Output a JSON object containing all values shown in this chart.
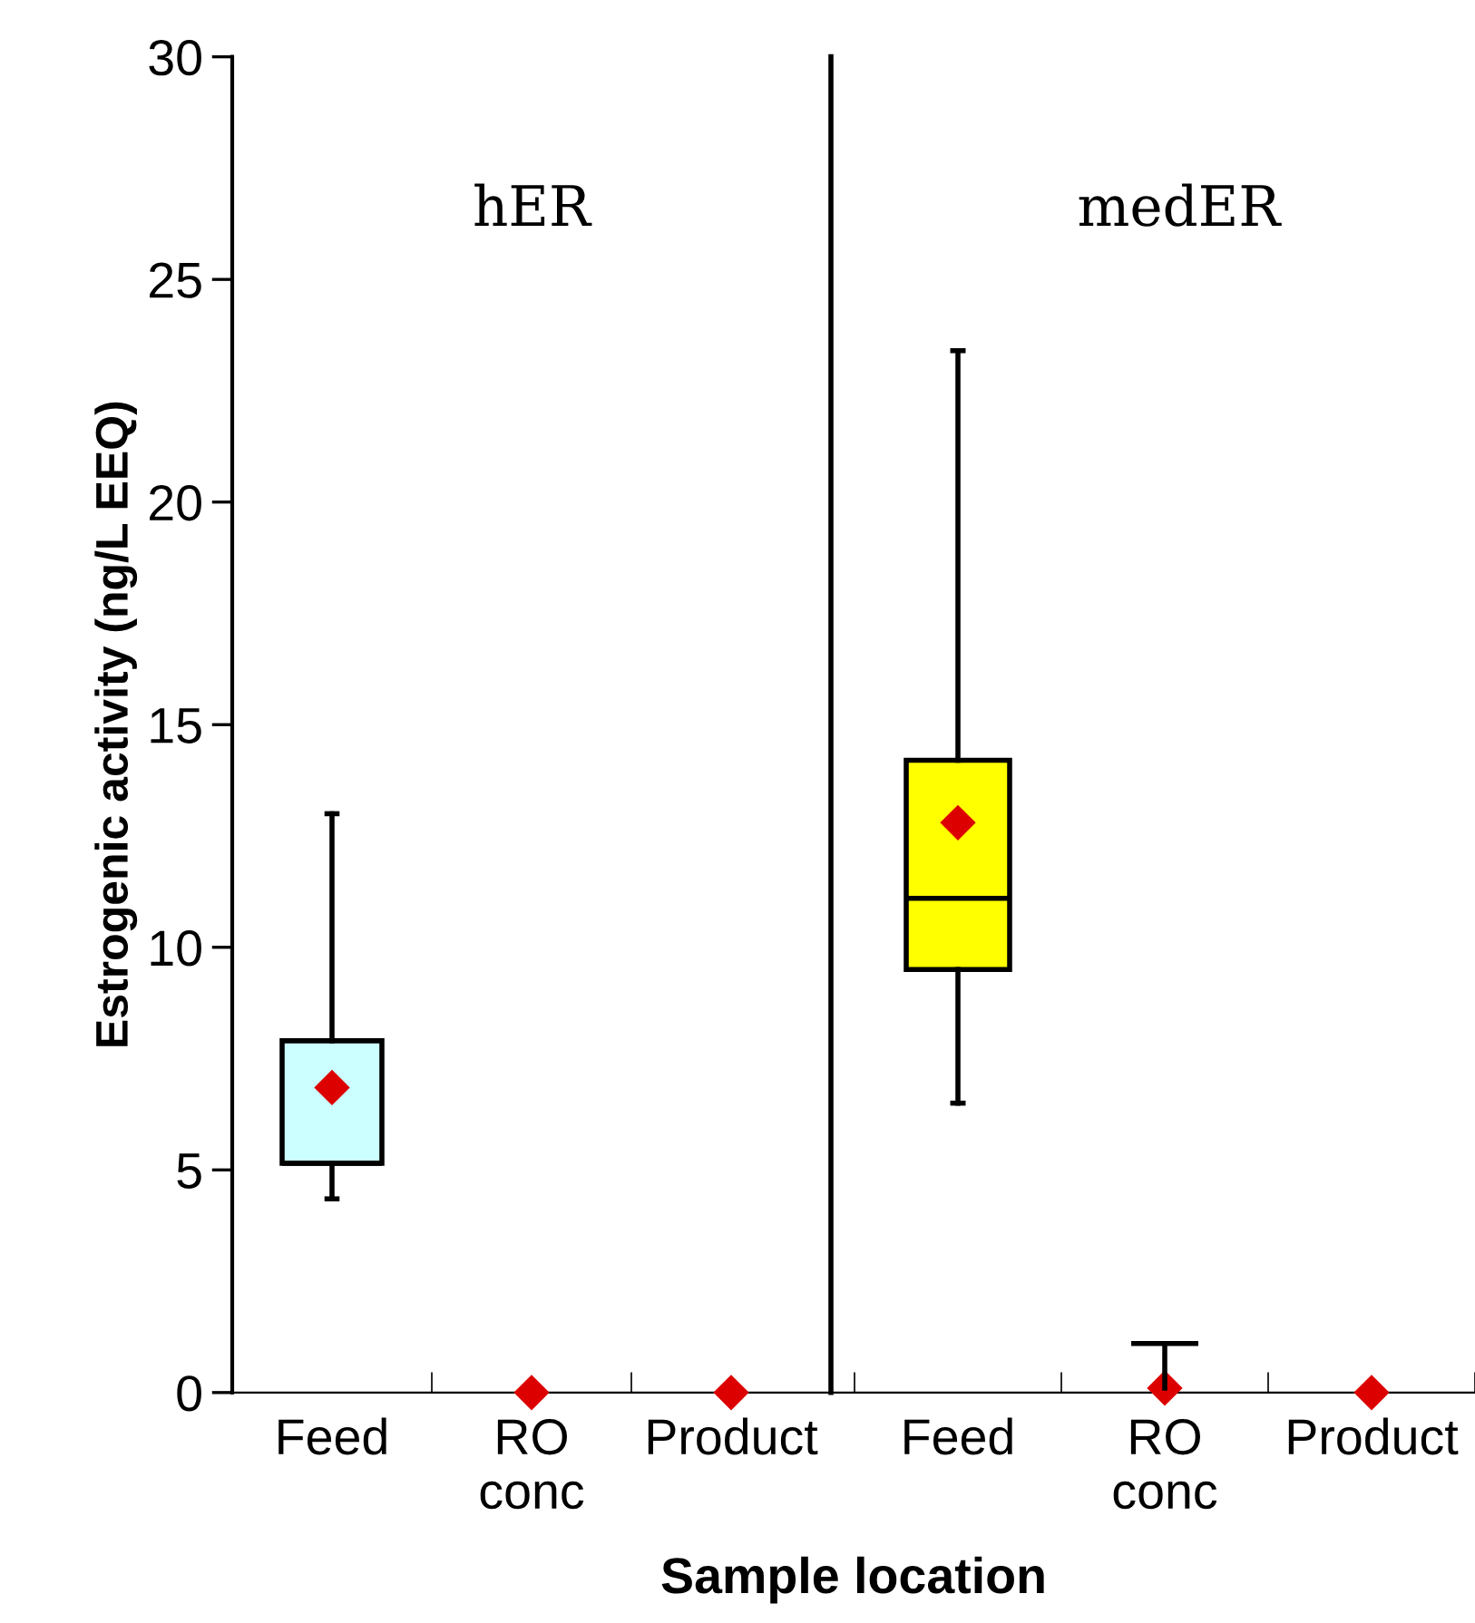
{
  "chart_data": [
    {
      "type": "box",
      "xlabel": "Sample location",
      "ylabel": "Estrogenic activity (ng/L EEQ)",
      "categories": [
        "Feed",
        "RO\nconc",
        "Product"
      ],
      "boxes": [
        {
          "low": 4.35,
          "q1": 5.15,
          "median": 5.15,
          "q3": 7.9,
          "high": 13
        },
        null,
        null
      ],
      "colors": [
        "#ccffff",
        null,
        null
      ],
      "series": [
        {
          "type": "scatter",
          "color": "#dd0000",
          "values": [
            6.85,
            0,
            0
          ]
        }
      ],
      "ylim": [
        0,
        30
      ],
      "yticks": [
        0,
        5,
        10,
        15,
        20,
        25,
        30
      ],
      "annotations": [
        "hER"
      ],
      "marker": "diamond"
    },
    {
      "type": "box",
      "categories": [
        "Feed",
        "RO\nconc",
        "Product"
      ],
      "boxes": [
        {
          "low": 6.5,
          "q1": 9.5,
          "median": 11.1,
          "q3": 14.2,
          "high": 23.4
        },
        null,
        null
      ],
      "colors": [
        "#ffff00",
        null,
        null
      ],
      "series": [
        {
          "type": "scatter",
          "color": "#dd0000",
          "values": [
            12.8,
            0.1,
            0
          ],
          "errors": [
            null,
            [
              0.1,
              1.1
            ],
            null
          ]
        }
      ],
      "ylim": [
        0,
        30
      ],
      "yticks": [
        0,
        5,
        10,
        15,
        20,
        25,
        30
      ],
      "tick_labels": "x",
      "annotations": [
        "medER"
      ],
      "marker": "diamond"
    }
  ]
}
